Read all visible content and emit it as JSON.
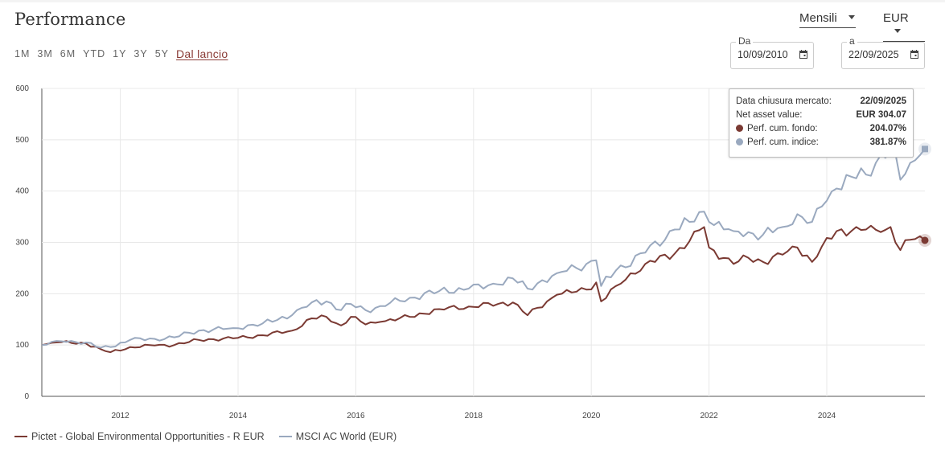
{
  "header": {
    "title": "Performance"
  },
  "ranges": [
    "1M",
    "3M",
    "6M",
    "YTD",
    "1Y",
    "3Y",
    "5Y",
    "Dal lancio"
  ],
  "active_range": "Dal lancio",
  "controls": {
    "frequency": "Mensili",
    "currency": "EUR",
    "from_label": "Da",
    "from_value": "10/09/2010",
    "to_label": "a",
    "to_value": "22/09/2025"
  },
  "tooltip": {
    "date_label": "Data chiusura mercato:",
    "date_value": "22/09/2025",
    "nav_label": "Net asset value:",
    "nav_value": "EUR 304.07",
    "fund_label": "Perf. cum. fondo:",
    "fund_value": "204.07%",
    "index_label": "Perf. cum. indice:",
    "index_value": "381.87%"
  },
  "colors": {
    "fund": "#7b3a33",
    "index": "#9aa9bf",
    "grid": "#e8e8e8",
    "accent": "#8a3b36"
  },
  "chart_data": {
    "type": "line",
    "x_start": "2010-09",
    "x_end": "2025-09",
    "x_tick_labels": [
      "2012",
      "2014",
      "2016",
      "2018",
      "2020",
      "2022",
      "2024"
    ],
    "y_ticks": [
      0,
      100,
      200,
      300,
      400,
      500,
      600
    ],
    "ylim": [
      0,
      600
    ],
    "grid": true,
    "legend_position": "bottom-left",
    "series": [
      {
        "name": "Pictet - Global Environmental Opportunities - R EUR",
        "key": "fund",
        "anchors": [
          [
            "2010-09",
            100
          ],
          [
            "2010-12",
            105
          ],
          [
            "2011-03",
            104
          ],
          [
            "2011-06",
            103
          ],
          [
            "2011-09",
            92
          ],
          [
            "2011-11",
            86
          ],
          [
            "2012-03",
            96
          ],
          [
            "2012-08",
            99
          ],
          [
            "2012-12",
            100
          ],
          [
            "2013-05",
            110
          ],
          [
            "2013-12",
            113
          ],
          [
            "2014-06",
            119
          ],
          [
            "2014-12",
            128
          ],
          [
            "2015-04",
            152
          ],
          [
            "2015-07",
            155
          ],
          [
            "2015-10",
            138
          ],
          [
            "2015-12",
            155
          ],
          [
            "2016-03",
            140
          ],
          [
            "2016-06",
            145
          ],
          [
            "2016-12",
            155
          ],
          [
            "2017-06",
            170
          ],
          [
            "2017-12",
            175
          ],
          [
            "2018-06",
            180
          ],
          [
            "2018-09",
            183
          ],
          [
            "2018-12",
            158
          ],
          [
            "2019-06",
            198
          ],
          [
            "2019-12",
            208
          ],
          [
            "2020-02",
            222
          ],
          [
            "2020-03",
            185
          ],
          [
            "2020-06",
            215
          ],
          [
            "2020-12",
            258
          ],
          [
            "2021-06",
            278
          ],
          [
            "2021-09",
            302
          ],
          [
            "2021-12",
            330
          ],
          [
            "2022-01",
            290
          ],
          [
            "2022-06",
            258
          ],
          [
            "2022-09",
            270
          ],
          [
            "2022-12",
            262
          ],
          [
            "2023-04",
            276
          ],
          [
            "2023-07",
            290
          ],
          [
            "2023-10",
            262
          ],
          [
            "2023-12",
            292
          ],
          [
            "2024-03",
            322
          ],
          [
            "2024-06",
            322
          ],
          [
            "2024-09",
            325
          ],
          [
            "2024-12",
            320
          ],
          [
            "2025-02",
            330
          ],
          [
            "2025-04",
            285
          ],
          [
            "2025-06",
            305
          ],
          [
            "2025-08",
            312
          ],
          [
            "2025-09",
            304
          ]
        ]
      },
      {
        "name": "MSCI AC World (EUR)",
        "key": "index",
        "anchors": [
          [
            "2010-09",
            100
          ],
          [
            "2010-12",
            108
          ],
          [
            "2011-03",
            108
          ],
          [
            "2011-06",
            105
          ],
          [
            "2011-09",
            95
          ],
          [
            "2011-11",
            96
          ],
          [
            "2012-03",
            110
          ],
          [
            "2012-08",
            112
          ],
          [
            "2012-12",
            115
          ],
          [
            "2013-05",
            128
          ],
          [
            "2013-12",
            133
          ],
          [
            "2014-06",
            142
          ],
          [
            "2014-12",
            158
          ],
          [
            "2015-04",
            183
          ],
          [
            "2015-07",
            185
          ],
          [
            "2015-10",
            168
          ],
          [
            "2015-12",
            180
          ],
          [
            "2016-03",
            168
          ],
          [
            "2016-06",
            176
          ],
          [
            "2016-12",
            192
          ],
          [
            "2017-06",
            205
          ],
          [
            "2017-12",
            210
          ],
          [
            "2018-06",
            218
          ],
          [
            "2018-09",
            230
          ],
          [
            "2018-12",
            210
          ],
          [
            "2019-06",
            240
          ],
          [
            "2019-12",
            258
          ],
          [
            "2020-02",
            265
          ],
          [
            "2020-03",
            215
          ],
          [
            "2020-06",
            245
          ],
          [
            "2020-12",
            280
          ],
          [
            "2021-06",
            325
          ],
          [
            "2021-09",
            340
          ],
          [
            "2021-12",
            360
          ],
          [
            "2022-01",
            340
          ],
          [
            "2022-06",
            322
          ],
          [
            "2022-09",
            320
          ],
          [
            "2022-12",
            315
          ],
          [
            "2023-04",
            330
          ],
          [
            "2023-07",
            355
          ],
          [
            "2023-10",
            340
          ],
          [
            "2023-12",
            370
          ],
          [
            "2024-03",
            405
          ],
          [
            "2024-06",
            428
          ],
          [
            "2024-09",
            432
          ],
          [
            "2024-12",
            470
          ],
          [
            "2025-02",
            488
          ],
          [
            "2025-04",
            422
          ],
          [
            "2025-06",
            455
          ],
          [
            "2025-08",
            470
          ],
          [
            "2025-09",
            482
          ]
        ]
      }
    ]
  }
}
